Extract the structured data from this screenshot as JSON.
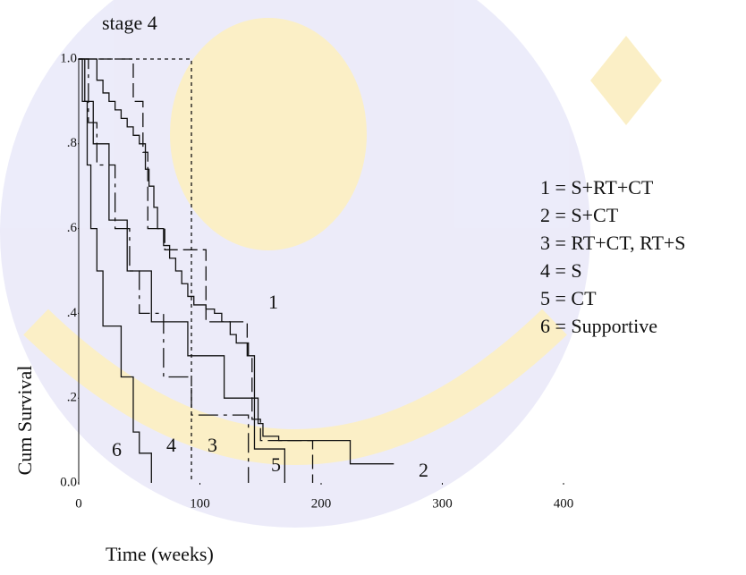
{
  "chart_data": {
    "type": "step-line",
    "title": "stage 4",
    "x_label": "Time (weeks)",
    "y_label": "Cum Survival",
    "xlim": [
      0,
      400
    ],
    "ylim": [
      0,
      1
    ],
    "xticks": [
      0,
      100,
      200,
      300,
      400
    ],
    "yticks": [
      {
        "value": 0,
        "label": "0.0"
      },
      {
        "value": 0.2,
        "label": ".2"
      },
      {
        "value": 0.4,
        "label": ".4"
      },
      {
        "value": 0.6,
        "label": ".6"
      },
      {
        "value": 0.8,
        "label": ".8"
      },
      {
        "value": 1,
        "label": "1.0"
      }
    ],
    "series": [
      {
        "name": "1 = S+RT+CT",
        "label": "1",
        "color": "#111111",
        "dash": "16 6",
        "x": [
          0,
          45,
          53,
          57,
          71,
          105,
          139,
          143,
          150,
          193,
          193
        ],
        "values": [
          1,
          0.9,
          0.78,
          0.6,
          0.55,
          0.38,
          0.3,
          0.15,
          0.1,
          0.1,
          0
        ]
      },
      {
        "name": "2 = S+CT",
        "label": "2",
        "color": "#111111",
        "dash": "none",
        "x": [
          0,
          10,
          15,
          20,
          25,
          30,
          35,
          40,
          45,
          50,
          55,
          58,
          62,
          65,
          70,
          75,
          80,
          85,
          90,
          95,
          105,
          112,
          118,
          125,
          130,
          140,
          145,
          148,
          152,
          165,
          224,
          260
        ],
        "values": [
          1,
          1,
          0.95,
          0.92,
          0.9,
          0.88,
          0.86,
          0.84,
          0.82,
          0.8,
          0.74,
          0.7,
          0.65,
          0.6,
          0.56,
          0.53,
          0.5,
          0.47,
          0.44,
          0.42,
          0.41,
          0.4,
          0.38,
          0.35,
          0.33,
          0.3,
          0.2,
          0.14,
          0.11,
          0.1,
          0.045,
          0.045
        ]
      },
      {
        "name": "3 = RT+CT, RT+S",
        "label": "3",
        "color": "#111111",
        "dash": "4 4",
        "x": [
          0,
          93,
          93
        ],
        "values": [
          1,
          1,
          0
        ]
      },
      {
        "name": "4 = S",
        "label": "4",
        "color": "#111111",
        "dash": "22 6 4 6",
        "x": [
          0,
          8,
          15,
          30,
          42,
          50,
          70,
          93,
          140,
          140
        ],
        "values": [
          1,
          0.85,
          0.75,
          0.6,
          0.5,
          0.4,
          0.25,
          0.16,
          0.16,
          0
        ]
      },
      {
        "name": "5 = CT",
        "label": "5",
        "color": "#111111",
        "dash": "none",
        "x": [
          0,
          5,
          12,
          25,
          40,
          60,
          90,
          120,
          145,
          170,
          170
        ],
        "values": [
          1,
          0.9,
          0.8,
          0.62,
          0.5,
          0.38,
          0.3,
          0.2,
          0.08,
          0.08,
          0
        ]
      },
      {
        "name": "6 = Supportive",
        "label": "6",
        "color": "#111111",
        "dash": "none",
        "x": [
          0,
          3,
          7,
          10,
          15,
          20,
          35,
          45,
          50,
          60,
          60
        ],
        "values": [
          1,
          0.9,
          0.75,
          0.6,
          0.5,
          0.37,
          0.25,
          0.12,
          0.07,
          0.07,
          0
        ]
      }
    ]
  }
}
